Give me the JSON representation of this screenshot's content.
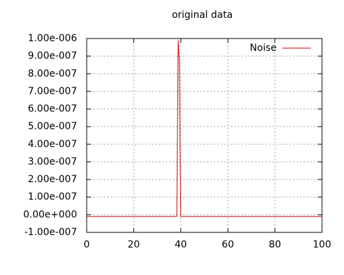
{
  "chart_data": {
    "type": "line",
    "title": "original data",
    "x": [
      0,
      38.3,
      38.9,
      39.4,
      39.7,
      40.0,
      100
    ],
    "series": [
      {
        "name": "Noise",
        "color": "#cc0000",
        "values": [
          -1e-08,
          -1e-08,
          9.9e-07,
          8.6e-07,
          3.5e-07,
          -1e-08,
          -1e-08
        ]
      }
    ],
    "xlim": [
      0,
      100
    ],
    "xticks": [
      0,
      20,
      40,
      60,
      80,
      100
    ],
    "ylim": [
      -1e-07,
      1e-06
    ],
    "yticks": [
      {
        "value": -1e-07,
        "label": "-1.00e-007"
      },
      {
        "value": 0,
        "label": "0.00e+000"
      },
      {
        "value": 1e-07,
        "label": "1.00e-007"
      },
      {
        "value": 2e-07,
        "label": "2.00e-007"
      },
      {
        "value": 3e-07,
        "label": "3.00e-007"
      },
      {
        "value": 4e-07,
        "label": "4.00e-007"
      },
      {
        "value": 5e-07,
        "label": "5.00e-007"
      },
      {
        "value": 6e-07,
        "label": "6.00e-007"
      },
      {
        "value": 7e-07,
        "label": "7.00e-007"
      },
      {
        "value": 8e-07,
        "label": "8.00e-007"
      },
      {
        "value": 9e-07,
        "label": "9.00e-007"
      },
      {
        "value": 1e-06,
        "label": "1.00e-006"
      }
    ],
    "grid": true,
    "legend": "top-right"
  }
}
